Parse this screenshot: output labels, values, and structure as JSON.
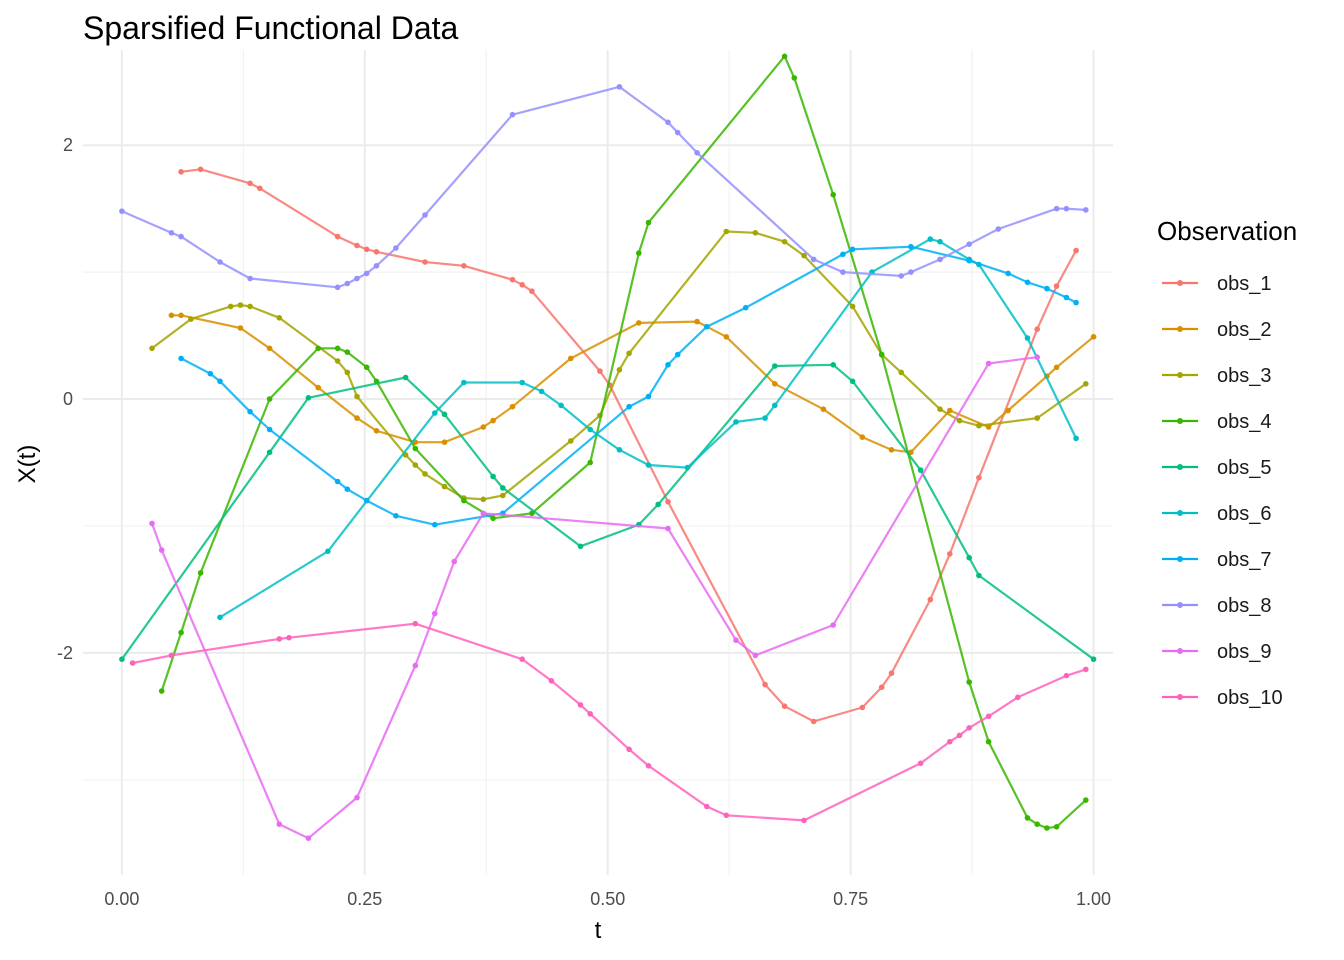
{
  "chart_data": {
    "type": "line",
    "title": "Sparsified Functional Data",
    "xlabel": "t",
    "ylabel": "X(t)",
    "xlim": [
      -0.04,
      1.02
    ],
    "ylim": [
      -3.75,
      2.75
    ],
    "x_ticks": [
      0,
      0.25,
      0.5,
      0.75,
      1
    ],
    "x_tick_labels": [
      "0.00",
      "0.25",
      "0.50",
      "0.75",
      "1.00"
    ],
    "y_ticks": [
      -2,
      0,
      2
    ],
    "y_tick_labels": [
      "-2",
      "0",
      "2"
    ],
    "grid": true,
    "legend_title": "Observation",
    "legend_position": "right",
    "series": [
      {
        "name": "obs_1",
        "color": "#F8766D",
        "points": [
          [
            0.061,
            1.79
          ],
          [
            0.081,
            1.81
          ],
          [
            0.132,
            1.7
          ],
          [
            0.142,
            1.66
          ],
          [
            0.222,
            1.28
          ],
          [
            0.242,
            1.21
          ],
          [
            0.252,
            1.18
          ],
          [
            0.262,
            1.16
          ],
          [
            0.312,
            1.08
          ],
          [
            0.352,
            1.05
          ],
          [
            0.402,
            0.94
          ],
          [
            0.412,
            0.9
          ],
          [
            0.422,
            0.85
          ],
          [
            0.492,
            0.22
          ],
          [
            0.502,
            0.11
          ],
          [
            0.562,
            -0.81
          ],
          [
            0.662,
            -2.25
          ],
          [
            0.682,
            -2.42
          ],
          [
            0.712,
            -2.54
          ],
          [
            0.762,
            -2.43
          ],
          [
            0.782,
            -2.27
          ],
          [
            0.792,
            -2.16
          ],
          [
            0.832,
            -1.58
          ],
          [
            0.852,
            -1.22
          ],
          [
            0.882,
            -0.62
          ],
          [
            0.942,
            0.55
          ],
          [
            0.962,
            0.89
          ],
          [
            0.982,
            1.17
          ]
        ]
      },
      {
        "name": "obs_2",
        "color": "#D89000",
        "points": [
          [
            0.051,
            0.66
          ],
          [
            0.061,
            0.66
          ],
          [
            0.122,
            0.56
          ],
          [
            0.152,
            0.4
          ],
          [
            0.202,
            0.09
          ],
          [
            0.242,
            -0.15
          ],
          [
            0.262,
            -0.25
          ],
          [
            0.302,
            -0.34
          ],
          [
            0.332,
            -0.34
          ],
          [
            0.372,
            -0.22
          ],
          [
            0.382,
            -0.17
          ],
          [
            0.402,
            -0.06
          ],
          [
            0.462,
            0.32
          ],
          [
            0.532,
            0.6
          ],
          [
            0.592,
            0.61
          ],
          [
            0.622,
            0.49
          ],
          [
            0.672,
            0.12
          ],
          [
            0.722,
            -0.08
          ],
          [
            0.762,
            -0.3
          ],
          [
            0.792,
            -0.4
          ],
          [
            0.812,
            -0.42
          ],
          [
            0.852,
            -0.09
          ],
          [
            0.892,
            -0.22
          ],
          [
            0.912,
            -0.09
          ],
          [
            0.952,
            0.18
          ],
          [
            0.962,
            0.25
          ],
          [
            1.0,
            0.49
          ]
        ]
      },
      {
        "name": "obs_3",
        "color": "#A3A500",
        "points": [
          [
            0.031,
            0.4
          ],
          [
            0.071,
            0.63
          ],
          [
            0.112,
            0.73
          ],
          [
            0.122,
            0.74
          ],
          [
            0.132,
            0.73
          ],
          [
            0.162,
            0.64
          ],
          [
            0.222,
            0.3
          ],
          [
            0.232,
            0.21
          ],
          [
            0.242,
            0.02
          ],
          [
            0.292,
            -0.44
          ],
          [
            0.302,
            -0.52
          ],
          [
            0.312,
            -0.59
          ],
          [
            0.332,
            -0.69
          ],
          [
            0.352,
            -0.78
          ],
          [
            0.372,
            -0.79
          ],
          [
            0.392,
            -0.76
          ],
          [
            0.462,
            -0.33
          ],
          [
            0.492,
            -0.13
          ],
          [
            0.512,
            0.23
          ],
          [
            0.522,
            0.36
          ],
          [
            0.622,
            1.32
          ],
          [
            0.652,
            1.31
          ],
          [
            0.682,
            1.24
          ],
          [
            0.702,
            1.13
          ],
          [
            0.752,
            0.73
          ],
          [
            0.782,
            0.35
          ],
          [
            0.802,
            0.21
          ],
          [
            0.842,
            -0.08
          ],
          [
            0.862,
            -0.17
          ],
          [
            0.882,
            -0.21
          ],
          [
            0.942,
            -0.15
          ],
          [
            0.992,
            0.12
          ]
        ]
      },
      {
        "name": "obs_4",
        "color": "#39B600",
        "points": [
          [
            0.041,
            -2.3
          ],
          [
            0.061,
            -1.84
          ],
          [
            0.081,
            -1.37
          ],
          [
            0.152,
            0.0
          ],
          [
            0.202,
            0.4
          ],
          [
            0.222,
            0.4
          ],
          [
            0.232,
            0.37
          ],
          [
            0.252,
            0.25
          ],
          [
            0.262,
            0.14
          ],
          [
            0.302,
            -0.39
          ],
          [
            0.352,
            -0.8
          ],
          [
            0.382,
            -0.94
          ],
          [
            0.422,
            -0.9
          ],
          [
            0.482,
            -0.5
          ],
          [
            0.532,
            1.15
          ],
          [
            0.542,
            1.39
          ],
          [
            0.682,
            2.7
          ],
          [
            0.692,
            2.53
          ],
          [
            0.732,
            1.61
          ],
          [
            0.782,
            0.35
          ],
          [
            0.872,
            -2.23
          ],
          [
            0.892,
            -2.7
          ],
          [
            0.932,
            -3.3
          ],
          [
            0.942,
            -3.35
          ],
          [
            0.952,
            -3.38
          ],
          [
            0.962,
            -3.37
          ],
          [
            0.992,
            -3.16
          ]
        ]
      },
      {
        "name": "obs_5",
        "color": "#00BF7D",
        "points": [
          [
            0.0,
            -2.05
          ],
          [
            0.152,
            -0.42
          ],
          [
            0.192,
            0.01
          ],
          [
            0.292,
            0.17
          ],
          [
            0.332,
            -0.12
          ],
          [
            0.382,
            -0.61
          ],
          [
            0.392,
            -0.7
          ],
          [
            0.472,
            -1.16
          ],
          [
            0.532,
            -0.99
          ],
          [
            0.552,
            -0.83
          ],
          [
            0.672,
            0.26
          ],
          [
            0.732,
            0.27
          ],
          [
            0.752,
            0.14
          ],
          [
            0.822,
            -0.56
          ],
          [
            0.872,
            -1.25
          ],
          [
            0.882,
            -1.39
          ],
          [
            1.0,
            -2.05
          ]
        ]
      },
      {
        "name": "obs_6",
        "color": "#00BFC4",
        "points": [
          [
            0.101,
            -1.72
          ],
          [
            0.212,
            -1.2
          ],
          [
            0.322,
            -0.11
          ],
          [
            0.352,
            0.13
          ],
          [
            0.412,
            0.13
          ],
          [
            0.432,
            0.06
          ],
          [
            0.452,
            -0.05
          ],
          [
            0.482,
            -0.24
          ],
          [
            0.512,
            -0.4
          ],
          [
            0.542,
            -0.52
          ],
          [
            0.582,
            -0.54
          ],
          [
            0.632,
            -0.18
          ],
          [
            0.662,
            -0.15
          ],
          [
            0.672,
            -0.05
          ],
          [
            0.772,
            1.0
          ],
          [
            0.832,
            1.26
          ],
          [
            0.842,
            1.24
          ],
          [
            0.872,
            1.1
          ],
          [
            0.882,
            1.06
          ],
          [
            0.932,
            0.48
          ],
          [
            0.982,
            -0.31
          ]
        ]
      },
      {
        "name": "obs_7",
        "color": "#00B0F6",
        "points": [
          [
            0.061,
            0.32
          ],
          [
            0.091,
            0.2
          ],
          [
            0.101,
            0.14
          ],
          [
            0.132,
            -0.1
          ],
          [
            0.152,
            -0.24
          ],
          [
            0.222,
            -0.65
          ],
          [
            0.232,
            -0.71
          ],
          [
            0.252,
            -0.8
          ],
          [
            0.282,
            -0.92
          ],
          [
            0.322,
            -0.99
          ],
          [
            0.392,
            -0.9
          ],
          [
            0.522,
            -0.06
          ],
          [
            0.542,
            0.02
          ],
          [
            0.562,
            0.27
          ],
          [
            0.572,
            0.35
          ],
          [
            0.602,
            0.57
          ],
          [
            0.642,
            0.72
          ],
          [
            0.742,
            1.14
          ],
          [
            0.752,
            1.18
          ],
          [
            0.812,
            1.2
          ],
          [
            0.872,
            1.09
          ],
          [
            0.912,
            0.99
          ],
          [
            0.932,
            0.92
          ],
          [
            0.952,
            0.87
          ],
          [
            0.972,
            0.8
          ],
          [
            0.982,
            0.76
          ]
        ]
      },
      {
        "name": "obs_8",
        "color": "#9590FF",
        "points": [
          [
            0.0,
            1.48
          ],
          [
            0.051,
            1.31
          ],
          [
            0.061,
            1.28
          ],
          [
            0.101,
            1.08
          ],
          [
            0.132,
            0.95
          ],
          [
            0.222,
            0.88
          ],
          [
            0.232,
            0.91
          ],
          [
            0.242,
            0.95
          ],
          [
            0.252,
            0.99
          ],
          [
            0.262,
            1.05
          ],
          [
            0.282,
            1.19
          ],
          [
            0.312,
            1.45
          ],
          [
            0.402,
            2.24
          ],
          [
            0.512,
            2.46
          ],
          [
            0.562,
            2.18
          ],
          [
            0.572,
            2.1
          ],
          [
            0.592,
            1.94
          ],
          [
            0.712,
            1.1
          ],
          [
            0.742,
            1.0
          ],
          [
            0.802,
            0.97
          ],
          [
            0.812,
            1.0
          ],
          [
            0.842,
            1.1
          ],
          [
            0.872,
            1.22
          ],
          [
            0.902,
            1.34
          ],
          [
            0.962,
            1.5
          ],
          [
            0.972,
            1.5
          ],
          [
            0.992,
            1.49
          ]
        ]
      },
      {
        "name": "obs_9",
        "color": "#E76BF3",
        "points": [
          [
            0.031,
            -0.98
          ],
          [
            0.041,
            -1.19
          ],
          [
            0.162,
            -3.35
          ],
          [
            0.192,
            -3.46
          ],
          [
            0.242,
            -3.14
          ],
          [
            0.302,
            -2.1
          ],
          [
            0.322,
            -1.69
          ],
          [
            0.342,
            -1.28
          ],
          [
            0.372,
            -0.9
          ],
          [
            0.562,
            -1.02
          ],
          [
            0.632,
            -1.9
          ],
          [
            0.652,
            -2.02
          ],
          [
            0.732,
            -1.78
          ],
          [
            0.892,
            0.28
          ],
          [
            0.942,
            0.33
          ]
        ]
      },
      {
        "name": "obs_10",
        "color": "#FF62BC",
        "points": [
          [
            0.011,
            -2.08
          ],
          [
            0.051,
            -2.02
          ],
          [
            0.162,
            -1.89
          ],
          [
            0.172,
            -1.88
          ],
          [
            0.302,
            -1.77
          ],
          [
            0.412,
            -2.05
          ],
          [
            0.442,
            -2.22
          ],
          [
            0.472,
            -2.41
          ],
          [
            0.482,
            -2.48
          ],
          [
            0.522,
            -2.76
          ],
          [
            0.542,
            -2.89
          ],
          [
            0.602,
            -3.21
          ],
          [
            0.622,
            -3.28
          ],
          [
            0.702,
            -3.32
          ],
          [
            0.822,
            -2.87
          ],
          [
            0.852,
            -2.7
          ],
          [
            0.862,
            -2.65
          ],
          [
            0.872,
            -2.59
          ],
          [
            0.892,
            -2.5
          ],
          [
            0.922,
            -2.35
          ],
          [
            0.972,
            -2.18
          ],
          [
            0.992,
            -2.13
          ]
        ]
      }
    ]
  }
}
